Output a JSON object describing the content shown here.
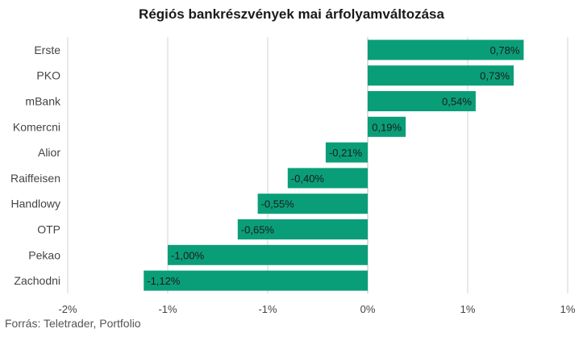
{
  "colors": {
    "bar": "#0a9e78",
    "grid": "#d3d3d3",
    "text": "#444444"
  },
  "chart_data": {
    "type": "bar",
    "orientation": "horizontal",
    "title": "Régiós bankrészvények mai árfolyamváltozása",
    "categories": [
      "Erste",
      "PKO",
      "mBank",
      "Komercni",
      "Alior",
      "Raiffeisen",
      "Handlowy",
      "OTP",
      "Pekao",
      "Zachodni"
    ],
    "values": [
      0.78,
      0.73,
      0.54,
      0.19,
      -0.21,
      -0.4,
      -0.55,
      -0.65,
      -1.0,
      -1.12
    ],
    "data_labels": [
      "0,78%",
      "0,73%",
      "0,54%",
      "0,19%",
      "-0,21%",
      "-0,40%",
      "-0,55%",
      "-0,65%",
      "-1,00%",
      "-1,12%"
    ],
    "xlim": [
      -1.5,
      1.0
    ],
    "x_ticks": [
      -1.5,
      -1.0,
      -0.5,
      0,
      0.5,
      1.0
    ],
    "x_tick_labels": [
      "-2%",
      "-1%",
      "-1%",
      "0%",
      "1%",
      "1%"
    ],
    "grid": true,
    "legend": "none"
  },
  "source": "Forrás: Teletrader, Portfolio"
}
